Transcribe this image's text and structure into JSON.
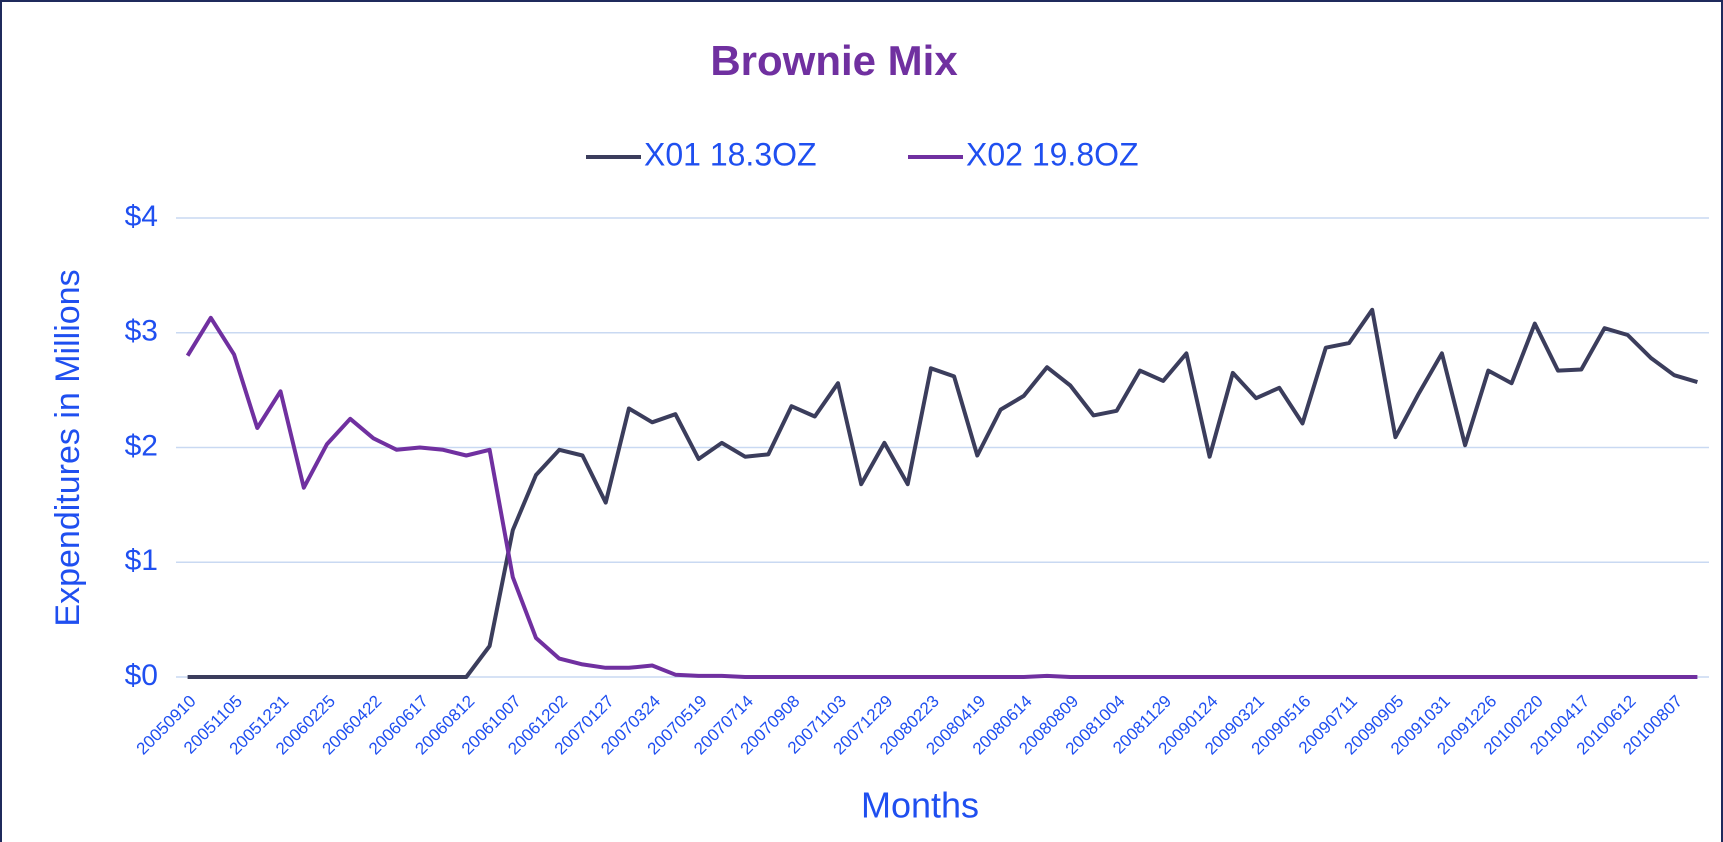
{
  "chart_data": {
    "type": "line",
    "title": "Brownie Mix",
    "xlabel": "Months",
    "ylabel": "Expenditures in Millions",
    "categories": [
      "20050910",
      null,
      "20051105",
      null,
      "20051231",
      null,
      "20060225",
      null,
      "20060422",
      null,
      "20060617",
      null,
      "20060812",
      null,
      "20061007",
      null,
      "20061202",
      null,
      "20070127",
      null,
      "20070324",
      null,
      "20070519",
      null,
      "20070714",
      null,
      "20070908",
      null,
      "20071103",
      null,
      "20071229",
      null,
      "20080223",
      null,
      "20080419",
      null,
      "20080614",
      null,
      "20080809",
      null,
      "20081004",
      null,
      "20081129",
      null,
      "20090124",
      null,
      "20090321",
      null,
      "20090516",
      null,
      "20090711",
      null,
      "20090905",
      null,
      "20091031",
      null,
      "20091226",
      null,
      "20100220",
      null,
      "20100417",
      null,
      "20100612",
      null,
      "20100807",
      null
    ],
    "series": [
      {
        "name": "X01 18.3OZ",
        "color": "#3b3d5c",
        "values": [
          0,
          0,
          0,
          0,
          0,
          0,
          0,
          0,
          0,
          0,
          0,
          0,
          0,
          0.27,
          1.28,
          1.76,
          1.98,
          1.93,
          1.52,
          2.34,
          2.22,
          2.29,
          1.9,
          2.04,
          1.92,
          1.94,
          2.36,
          2.27,
          2.56,
          1.68,
          2.04,
          1.68,
          2.69,
          2.62,
          1.93,
          2.33,
          2.45,
          2.7,
          2.54,
          2.28,
          2.32,
          2.67,
          2.58,
          2.82,
          1.92,
          2.65,
          2.43,
          2.52,
          2.21,
          2.87,
          2.91,
          3.2,
          2.09,
          2.47,
          2.82,
          2.02,
          2.67,
          2.56,
          3.08,
          2.67,
          2.68,
          3.04,
          2.98,
          2.78,
          2.63,
          2.57
        ]
      },
      {
        "name": "X02 19.8OZ",
        "color": "#7030a0",
        "values": [
          2.8,
          3.13,
          2.81,
          2.17,
          2.49,
          1.65,
          2.03,
          2.25,
          2.08,
          1.98,
          2.0,
          1.98,
          1.93,
          1.98,
          0.87,
          0.34,
          0.16,
          0.11,
          0.08,
          0.08,
          0.1,
          0.02,
          0.01,
          0.01,
          0,
          0,
          0,
          0,
          0,
          0,
          0,
          0,
          0,
          0,
          0,
          0,
          0,
          0.01,
          0,
          0,
          0,
          0,
          0,
          0,
          0,
          0,
          0,
          0,
          0,
          0,
          0,
          0,
          0,
          0,
          0,
          0,
          0,
          0,
          0,
          0,
          0,
          0,
          0,
          0,
          0,
          0
        ]
      }
    ],
    "ylim": [
      0,
      4
    ],
    "yticks": [
      {
        "value": 0,
        "label": "$0"
      },
      {
        "value": 1,
        "label": "$1"
      },
      {
        "value": 2,
        "label": "$2"
      },
      {
        "value": 3,
        "label": "$3"
      },
      {
        "value": 4,
        "label": "$4"
      }
    ],
    "grid": true,
    "legend": "top"
  }
}
